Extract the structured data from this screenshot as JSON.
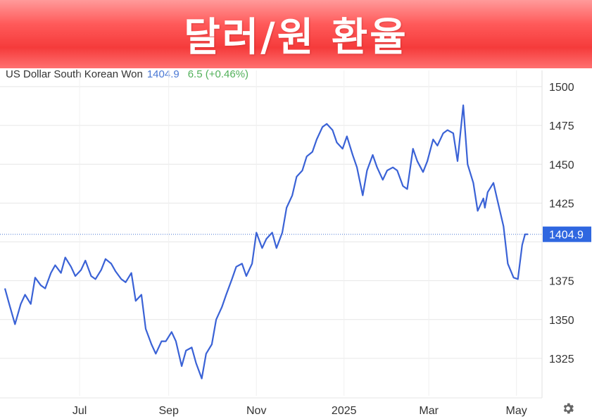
{
  "header": {
    "title": "달러/원 환율"
  },
  "legend": {
    "name": "US Dollar South Korean Won",
    "value": "1404.9",
    "change": "6.5 (+0.46%)"
  },
  "colors": {
    "line": "#3a62d6",
    "last_label_bg": "#2f67e0",
    "change": "#52b05a",
    "grid": "#e6e6e6"
  },
  "icons": {
    "settings": "gear-icon"
  },
  "chart_data": {
    "type": "line",
    "ylim": [
      1300,
      1505
    ],
    "yticks": [
      1325,
      1350,
      1375,
      1400,
      1425,
      1450,
      1475,
      1500
    ],
    "ytick_labels": [
      "1325",
      "1350",
      "1375",
      "1425",
      "1450",
      "1475",
      "1500"
    ],
    "xtick_labels": [
      "Jul",
      "Sep",
      "Nov",
      "2025",
      "Mar",
      "May"
    ],
    "xticks": [
      "2024-07-01",
      "2024-09-01",
      "2024-11-01",
      "2025-01-01",
      "2025-03-01",
      "2025-05-01"
    ],
    "grid": true,
    "last_value": 1404.9,
    "last_value_label": "1404.9",
    "series": [
      {
        "dates": [
          "2024-05-10",
          "2024-05-13",
          "2024-05-17",
          "2024-05-21",
          "2024-05-24",
          "2024-05-28",
          "2024-05-31",
          "2024-06-04",
          "2024-06-07",
          "2024-06-11",
          "2024-06-14",
          "2024-06-18",
          "2024-06-21",
          "2024-06-25",
          "2024-06-28",
          "2024-07-02",
          "2024-07-05",
          "2024-07-09",
          "2024-07-12",
          "2024-07-16",
          "2024-07-19",
          "2024-07-23",
          "2024-07-26",
          "2024-07-30",
          "2024-08-02",
          "2024-08-06",
          "2024-08-09",
          "2024-08-13",
          "2024-08-16",
          "2024-08-20",
          "2024-08-23",
          "2024-08-27",
          "2024-08-30",
          "2024-09-03",
          "2024-09-06",
          "2024-09-10",
          "2024-09-13",
          "2024-09-17",
          "2024-09-20",
          "2024-09-24",
          "2024-09-27",
          "2024-10-01",
          "2024-10-04",
          "2024-10-08",
          "2024-10-11",
          "2024-10-15",
          "2024-10-18",
          "2024-10-22",
          "2024-10-25",
          "2024-10-29",
          "2024-11-01",
          "2024-11-05",
          "2024-11-08",
          "2024-11-12",
          "2024-11-15",
          "2024-11-19",
          "2024-11-22",
          "2024-11-26",
          "2024-11-29",
          "2024-12-03",
          "2024-12-06",
          "2024-12-10",
          "2024-12-13",
          "2024-12-17",
          "2024-12-20",
          "2024-12-24",
          "2024-12-27",
          "2024-12-31",
          "2025-01-03",
          "2025-01-07",
          "2025-01-10",
          "2025-01-14",
          "2025-01-17",
          "2025-01-21",
          "2025-01-24",
          "2025-01-28",
          "2025-01-31",
          "2025-02-04",
          "2025-02-07",
          "2025-02-11",
          "2025-02-14",
          "2025-02-18",
          "2025-02-21",
          "2025-02-25",
          "2025-02-28",
          "2025-03-04",
          "2025-03-07",
          "2025-03-11",
          "2025-03-14",
          "2025-03-18",
          "2025-03-21",
          "2025-03-25",
          "2025-03-28",
          "2025-04-01",
          "2025-04-04",
          "2025-04-08",
          "2025-04-09",
          "2025-04-11",
          "2025-04-15",
          "2025-04-18",
          "2025-04-22",
          "2025-04-25",
          "2025-04-29",
          "2025-05-02",
          "2025-05-05",
          "2025-05-07",
          "2025-05-09"
        ],
        "values": [
          1370,
          1360,
          1347,
          1360,
          1366,
          1360,
          1377,
          1372,
          1370,
          1380,
          1385,
          1380,
          1390,
          1384,
          1378,
          1382,
          1388,
          1378,
          1376,
          1382,
          1389,
          1386,
          1381,
          1376,
          1374,
          1380,
          1362,
          1366,
          1344,
          1334,
          1328,
          1336,
          1336,
          1342,
          1336,
          1320,
          1330,
          1332,
          1322,
          1312,
          1328,
          1334,
          1350,
          1358,
          1366,
          1376,
          1384,
          1386,
          1378,
          1386,
          1406,
          1396,
          1402,
          1406,
          1396,
          1406,
          1422,
          1430,
          1442,
          1446,
          1455,
          1458,
          1466,
          1474,
          1476,
          1472,
          1464,
          1460,
          1468,
          1456,
          1448,
          1430,
          1446,
          1456,
          1448,
          1440,
          1446,
          1448,
          1446,
          1436,
          1434,
          1460,
          1452,
          1445,
          1452,
          1466,
          1462,
          1470,
          1472,
          1470,
          1452,
          1488,
          1450,
          1438,
          1420,
          1428,
          1422,
          1432,
          1438,
          1426,
          1410,
          1386,
          1377,
          1376,
          1398,
          1404.9,
          1404.9
        ]
      }
    ]
  }
}
